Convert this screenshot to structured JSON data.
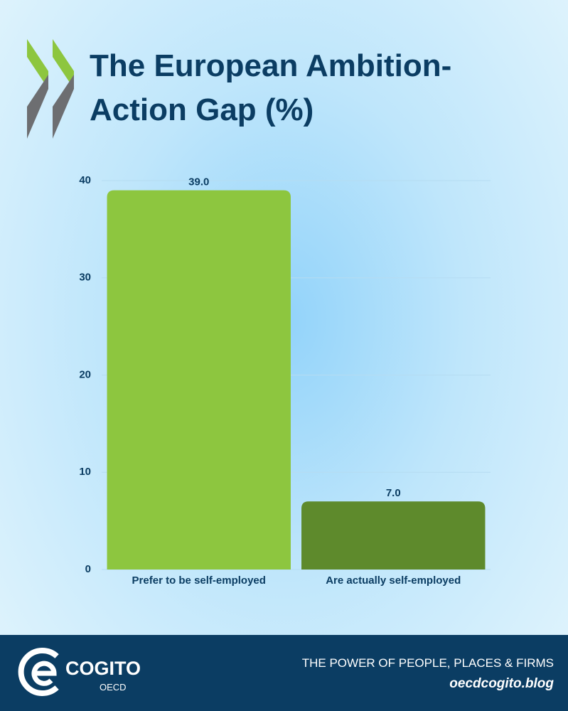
{
  "chart_data": {
    "type": "bar",
    "title": "The European Ambition-Action Gap (%)",
    "categories": [
      "Prefer to be self-employed",
      "Are actually self-employed"
    ],
    "values": [
      39,
      7
    ],
    "value_labels": [
      "39.0",
      "7.0"
    ],
    "colors": [
      "#8dc63f",
      "#5e8a2c"
    ],
    "ylim": [
      0,
      40
    ],
    "yticks": [
      0,
      10,
      20,
      30,
      40
    ],
    "grid": true
  },
  "footer": {
    "brand": "COGITO",
    "sub_brand": "OECD",
    "tagline": "THE POWER OF PEOPLE, PLACES & FIRMS",
    "url": "oecdcogito.blog"
  }
}
